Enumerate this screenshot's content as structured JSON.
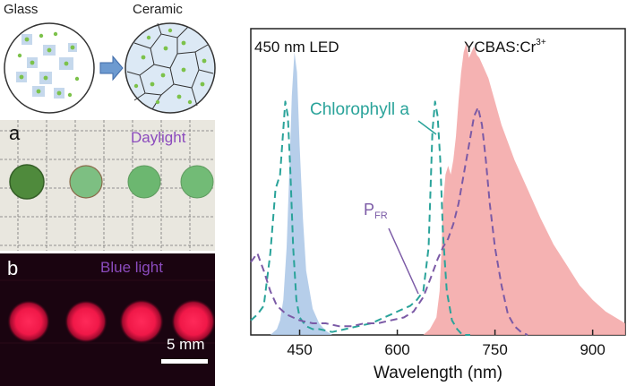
{
  "schematic": {
    "glass_label": "Glass",
    "ceramic_label": "Ceramic"
  },
  "photo_a": {
    "letter": "a",
    "caption": "Daylight"
  },
  "photo_b": {
    "letter": "b",
    "caption": "Blue light",
    "scalebar_label": "5 mm"
  },
  "colors": {
    "led_fill": "#a9c6e6",
    "ycbas_fill": "#f3a4a4",
    "chlorophyll_line": "#2aa39a",
    "pfr_line": "#7b5aa6",
    "chlorophyll_text": "#2aa39a",
    "pfr_text": "#7b5aa6"
  },
  "chart_data": {
    "type": "area",
    "xlabel": "Wavelength (nm)",
    "ylabel": "",
    "xlim": [
      375,
      950
    ],
    "ylim": [
      0,
      1.05
    ],
    "xticks": [
      450,
      600,
      750,
      900
    ],
    "tick_labels": [
      "450",
      "600",
      "750",
      "900"
    ],
    "annotations": {
      "led": "450 nm LED",
      "ycbas": "YCBAS:Cr",
      "ycbas_sup": "3+",
      "chlorophyll": "Chlorophyll a",
      "pfr_main": "P",
      "pfr_sub": "FR"
    },
    "series": [
      {
        "name": "450 nm LED",
        "style": "filled",
        "x": [
          405,
          415,
          420,
          425,
          430,
          434,
          438,
          442,
          446,
          450,
          455,
          460,
          470,
          480,
          490,
          500
        ],
        "y": [
          0.0,
          0.02,
          0.05,
          0.12,
          0.3,
          0.55,
          0.82,
          0.97,
          0.9,
          0.65,
          0.4,
          0.22,
          0.09,
          0.04,
          0.015,
          0.0
        ]
      },
      {
        "name": "YCBAS:Cr3+",
        "style": "filled",
        "x": [
          640,
          650,
          660,
          665,
          668,
          670,
          674,
          678,
          682,
          686,
          690,
          694,
          698,
          702,
          706,
          710,
          714,
          718,
          722,
          726,
          730,
          740,
          750,
          760,
          780,
          800,
          820,
          840,
          860,
          880,
          900,
          920,
          950
        ],
        "y": [
          0.0,
          0.02,
          0.06,
          0.15,
          0.3,
          0.45,
          0.55,
          0.58,
          0.55,
          0.6,
          0.68,
          0.8,
          0.9,
          0.97,
          1.0,
          0.95,
          0.97,
          0.99,
          0.96,
          0.95,
          0.93,
          0.88,
          0.8,
          0.72,
          0.6,
          0.5,
          0.4,
          0.31,
          0.24,
          0.17,
          0.12,
          0.08,
          0.04
        ]
      },
      {
        "name": "Chlorophyll a",
        "style": "dashed",
        "x": [
          375,
          385,
          395,
          405,
          413,
          420,
          428,
          432,
          436,
          440,
          445,
          450,
          460,
          470,
          480,
          500,
          520,
          540,
          560,
          580,
          600,
          620,
          630,
          640,
          648,
          654,
          658,
          662,
          666,
          670,
          676,
          684,
          692,
          700,
          712
        ],
        "y": [
          0.05,
          0.07,
          0.1,
          0.28,
          0.5,
          0.55,
          0.8,
          0.75,
          0.55,
          0.3,
          0.12,
          0.06,
          0.03,
          0.02,
          0.02,
          0.01,
          0.02,
          0.03,
          0.04,
          0.06,
          0.08,
          0.1,
          0.12,
          0.15,
          0.3,
          0.7,
          0.8,
          0.75,
          0.6,
          0.35,
          0.15,
          0.05,
          0.02,
          0.0,
          0.0
        ]
      },
      {
        "name": "PFR",
        "style": "dashed",
        "x": [
          375,
          385,
          395,
          405,
          415,
          430,
          450,
          470,
          490,
          510,
          530,
          550,
          570,
          590,
          610,
          625,
          640,
          652,
          662,
          670,
          678,
          686,
          694,
          702,
          710,
          718,
          724,
          730,
          736,
          742,
          750,
          760,
          770,
          780,
          790,
          800
        ],
        "y": [
          0.25,
          0.28,
          0.22,
          0.15,
          0.1,
          0.07,
          0.05,
          0.04,
          0.04,
          0.03,
          0.03,
          0.04,
          0.04,
          0.05,
          0.06,
          0.08,
          0.13,
          0.2,
          0.26,
          0.3,
          0.33,
          0.38,
          0.45,
          0.55,
          0.65,
          0.75,
          0.78,
          0.72,
          0.6,
          0.45,
          0.3,
          0.17,
          0.07,
          0.03,
          0.01,
          0.0
        ]
      }
    ]
  }
}
